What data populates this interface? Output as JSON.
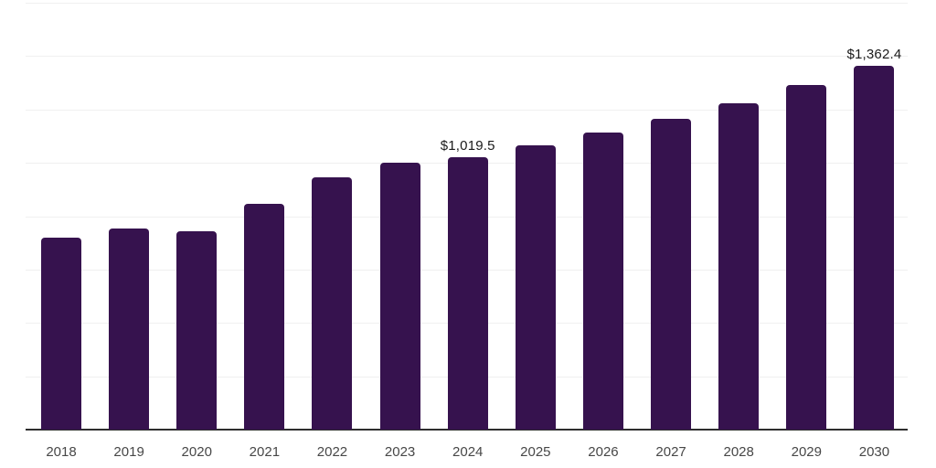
{
  "chart_data": {
    "type": "bar",
    "title": "",
    "xlabel": "",
    "ylabel": "",
    "categories": [
      "2018",
      "2019",
      "2020",
      "2021",
      "2022",
      "2023",
      "2024",
      "2025",
      "2026",
      "2027",
      "2028",
      "2029",
      "2030"
    ],
    "values": [
      720,
      755,
      742,
      845,
      947,
      999,
      1019.5,
      1064,
      1115,
      1165,
      1222,
      1290,
      1362.4
    ],
    "data_labels": [
      "",
      "",
      "",
      "",
      "",
      "",
      "$1,019.5",
      "",
      "",
      "",
      "",
      "",
      "$1,362.4"
    ],
    "ylim": [
      0,
      1600
    ],
    "grid_step": 200,
    "grid": true,
    "legend_position": "none",
    "colors": {
      "bar": "#36124e",
      "gridline": "#f0f0f0",
      "axis_line": "#2e2e2e",
      "tick_label": "#474747",
      "value_label": "#1a1a1a",
      "background": "#ffffff"
    }
  }
}
